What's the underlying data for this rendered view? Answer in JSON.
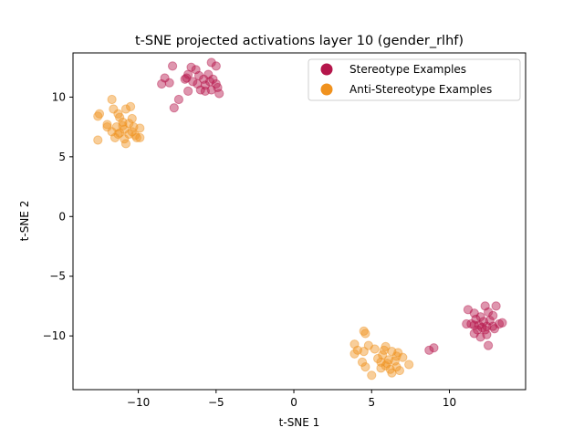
{
  "chart_data": {
    "type": "scatter",
    "title": "t-SNE projected activations layer 10 (gender_rlhf)",
    "xlabel": "t-SNE 1",
    "ylabel": "t-SNE 2",
    "xlim": [
      -14.2,
      14.9
    ],
    "ylim": [
      -14.5,
      13.7
    ],
    "x_ticks": [
      -10,
      -5,
      0,
      5,
      10
    ],
    "y_ticks": [
      -10,
      -5,
      0,
      5,
      10
    ],
    "x_tick_labels": [
      "−10",
      "−5",
      "0",
      "5",
      "10"
    ],
    "y_tick_labels": [
      "−10",
      "−5",
      "0",
      "5",
      "10"
    ],
    "grid": false,
    "legend_position": "top-right",
    "series": [
      {
        "name": "Stereotype Examples",
        "color": "#b5164b",
        "points": [
          [
            -7.8,
            12.6
          ],
          [
            -6.6,
            12.5
          ],
          [
            -6.3,
            12.3
          ],
          [
            -5.3,
            12.9
          ],
          [
            -5.0,
            12.6
          ],
          [
            -6.8,
            11.9
          ],
          [
            -6.1,
            11.8
          ],
          [
            -5.5,
            11.9
          ],
          [
            -8.3,
            11.6
          ],
          [
            -7.0,
            11.5
          ],
          [
            -6.5,
            11.3
          ],
          [
            -5.2,
            11.5
          ],
          [
            -8.5,
            11.1
          ],
          [
            -8.0,
            11.2
          ],
          [
            -6.2,
            11.1
          ],
          [
            -5.7,
            11.0
          ],
          [
            -5.0,
            11.1
          ],
          [
            -4.9,
            10.8
          ],
          [
            -5.3,
            10.6
          ],
          [
            -5.7,
            10.5
          ],
          [
            -6.8,
            10.5
          ],
          [
            -4.8,
            10.3
          ],
          [
            -7.4,
            9.8
          ],
          [
            -7.7,
            9.1
          ],
          [
            -6.0,
            10.6
          ],
          [
            -5.4,
            11.3
          ],
          [
            -6.9,
            11.6
          ],
          [
            -5.8,
            11.5
          ],
          [
            12.3,
            -7.5
          ],
          [
            13.0,
            -7.5
          ],
          [
            11.2,
            -7.8
          ],
          [
            11.6,
            -8.1
          ],
          [
            12.5,
            -8.0
          ],
          [
            12.0,
            -8.4
          ],
          [
            12.8,
            -8.3
          ],
          [
            11.7,
            -8.6
          ],
          [
            12.6,
            -8.7
          ],
          [
            12.2,
            -8.8
          ],
          [
            11.1,
            -9.0
          ],
          [
            11.4,
            -9.0
          ],
          [
            11.9,
            -9.1
          ],
          [
            12.4,
            -9.2
          ],
          [
            12.8,
            -9.2
          ],
          [
            13.2,
            -9.0
          ],
          [
            13.4,
            -8.9
          ],
          [
            12.3,
            -9.5
          ],
          [
            11.8,
            -9.5
          ],
          [
            11.6,
            -9.8
          ],
          [
            12.4,
            -9.9
          ],
          [
            12.9,
            -9.4
          ],
          [
            12.0,
            -10.1
          ],
          [
            12.5,
            -10.8
          ],
          [
            11.6,
            -9.1
          ],
          [
            12.1,
            -9.3
          ],
          [
            9.0,
            -11.0
          ],
          [
            8.7,
            -11.2
          ]
        ]
      },
      {
        "name": "Anti-Stereotype Examples",
        "color": "#f0921e",
        "points": [
          [
            -11.7,
            9.8
          ],
          [
            -12.5,
            8.6
          ],
          [
            -12.6,
            8.4
          ],
          [
            -10.8,
            9.0
          ],
          [
            -10.5,
            9.2
          ],
          [
            -11.3,
            8.6
          ],
          [
            -11.6,
            9.0
          ],
          [
            -10.4,
            8.2
          ],
          [
            -11.2,
            8.3
          ],
          [
            -11.0,
            7.9
          ],
          [
            -10.6,
            7.8
          ],
          [
            -12.0,
            7.7
          ],
          [
            -11.4,
            7.5
          ],
          [
            -10.9,
            7.3
          ],
          [
            -10.3,
            7.5
          ],
          [
            -9.9,
            7.4
          ],
          [
            -11.7,
            7.1
          ],
          [
            -11.2,
            7.0
          ],
          [
            -10.6,
            6.9
          ],
          [
            -10.2,
            6.8
          ],
          [
            -11.5,
            6.6
          ],
          [
            -10.9,
            6.5
          ],
          [
            -10.1,
            6.6
          ],
          [
            -9.9,
            6.6
          ],
          [
            -12.6,
            6.4
          ],
          [
            -10.8,
            6.1
          ],
          [
            -11.3,
            6.9
          ],
          [
            -10.4,
            7.1
          ],
          [
            -12.0,
            7.5
          ],
          [
            -11.0,
            7.6
          ],
          [
            4.5,
            -9.6
          ],
          [
            4.6,
            -9.8
          ],
          [
            3.9,
            -10.7
          ],
          [
            4.8,
            -10.8
          ],
          [
            5.2,
            -11.1
          ],
          [
            4.1,
            -11.2
          ],
          [
            3.9,
            -11.5
          ],
          [
            4.5,
            -11.3
          ],
          [
            5.9,
            -10.9
          ],
          [
            6.3,
            -11.3
          ],
          [
            6.7,
            -11.4
          ],
          [
            5.7,
            -11.6
          ],
          [
            6.6,
            -11.7
          ],
          [
            7.0,
            -11.8
          ],
          [
            5.4,
            -11.9
          ],
          [
            6.1,
            -12.0
          ],
          [
            4.4,
            -12.2
          ],
          [
            5.6,
            -12.2
          ],
          [
            6.5,
            -12.1
          ],
          [
            7.4,
            -12.4
          ],
          [
            5.9,
            -12.5
          ],
          [
            6.6,
            -12.6
          ],
          [
            4.6,
            -12.6
          ],
          [
            5.6,
            -12.7
          ],
          [
            6.2,
            -12.8
          ],
          [
            6.8,
            -12.9
          ],
          [
            6.3,
            -13.1
          ],
          [
            5.0,
            -13.3
          ],
          [
            6.0,
            -12.3
          ],
          [
            5.8,
            -11.2
          ]
        ]
      }
    ]
  }
}
